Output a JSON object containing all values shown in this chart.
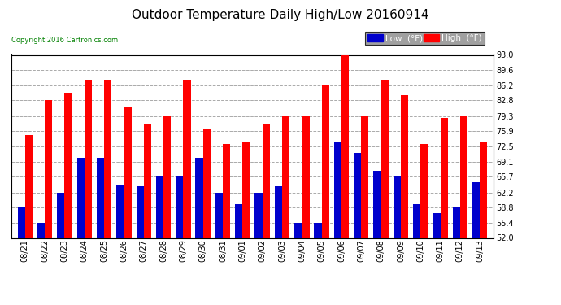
{
  "title": "Outdoor Temperature Daily High/Low 20160914",
  "copyright": "Copyright 2016 Cartronics.com",
  "dates": [
    "08/21",
    "08/22",
    "08/23",
    "08/24",
    "08/25",
    "08/26",
    "08/27",
    "08/28",
    "08/29",
    "08/30",
    "08/31",
    "09/01",
    "09/02",
    "09/03",
    "09/04",
    "09/05",
    "09/06",
    "09/07",
    "09/08",
    "09/09",
    "09/10",
    "09/11",
    "09/12",
    "09/13"
  ],
  "highs": [
    75.0,
    82.8,
    84.5,
    87.5,
    87.5,
    81.5,
    77.5,
    79.3,
    87.5,
    76.5,
    73.0,
    73.5,
    77.5,
    79.3,
    79.3,
    86.2,
    93.0,
    79.3,
    87.5,
    84.0,
    73.0,
    78.8,
    79.3,
    73.5
  ],
  "lows": [
    58.8,
    55.4,
    62.2,
    70.0,
    70.0,
    64.0,
    63.5,
    65.7,
    65.7,
    70.0,
    62.2,
    59.5,
    62.2,
    63.5,
    55.4,
    55.4,
    73.5,
    71.0,
    67.0,
    66.0,
    59.5,
    57.5,
    58.8,
    64.5
  ],
  "high_color": "#ff0000",
  "low_color": "#0000cc",
  "background_color": "#ffffff",
  "grid_color": "#aaaaaa",
  "ylim": [
    52.0,
    93.0
  ],
  "yticks": [
    52.0,
    55.4,
    58.8,
    62.2,
    65.7,
    69.1,
    72.5,
    75.9,
    79.3,
    82.8,
    86.2,
    89.6,
    93.0
  ],
  "bar_width": 0.38,
  "title_fontsize": 11,
  "tick_fontsize": 7,
  "legend_low_label": "Low  (°F)",
  "legend_high_label": "High  (°F)"
}
